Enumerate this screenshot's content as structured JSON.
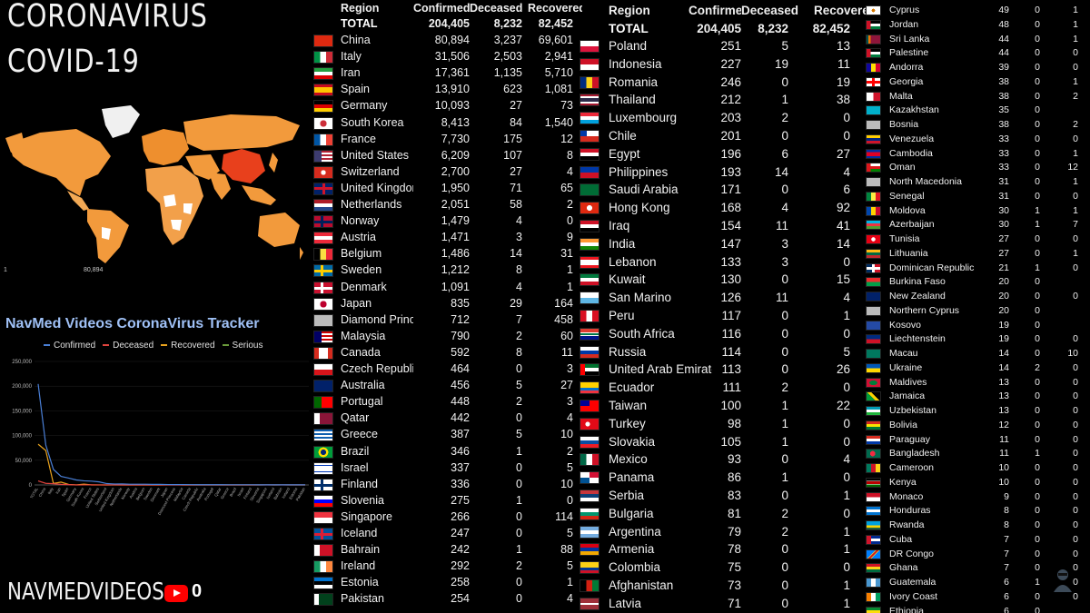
{
  "header": {
    "title_line1": "CORONAVIRUS",
    "title_line2": "COVID-19",
    "tracker_title": "NavMed Videos CoronaVirus Tracker",
    "brand": "NAVMEDVIDEOS",
    "subscriber_count": "0"
  },
  "legend": [
    {
      "label": "Confirmed",
      "color": "#4a7fd6"
    },
    {
      "label": "Deceased",
      "color": "#e0443e"
    },
    {
      "label": "Recovered",
      "color": "#e8a21d"
    },
    {
      "label": "Serious",
      "color": "#6a9a3a"
    }
  ],
  "map_scale": {
    "min_label": "1",
    "max_label": "80,894"
  },
  "chart_data": {
    "type": "line",
    "ylim": [
      0,
      250000
    ],
    "yticks": [
      "250,000",
      "200,000",
      "150,000",
      "100,000",
      "50,000",
      "0"
    ],
    "categories": [
      "TOTAL",
      "China",
      "Italy",
      "Iran",
      "Spain",
      "Germany",
      "South Korea",
      "France",
      "United States",
      "Switzerland",
      "United Kingdom",
      "Netherlands",
      "Norway",
      "Austria",
      "Belgium",
      "Sweden",
      "Denmark",
      "Japan",
      "Diamond Princess",
      "Malaysia",
      "Canada",
      "Czech Republic",
      "Australia",
      "Portugal",
      "Qatar",
      "Greece",
      "Brazil",
      "Israel",
      "Finland",
      "Slovenia",
      "Singapore",
      "Iceland",
      "Bahrain",
      "Ireland",
      "Estonia",
      "Pakistan"
    ],
    "series": [
      {
        "name": "Confirmed",
        "color": "#4a7fd6",
        "values": [
          204405,
          80894,
          31506,
          17361,
          13910,
          10093,
          8413,
          7730,
          6209,
          2700,
          1950,
          2051,
          1479,
          1471,
          1486,
          1212,
          1091,
          835,
          712,
          790,
          592,
          464,
          456,
          448,
          442,
          387,
          346,
          337,
          336,
          275,
          266,
          247,
          242,
          292,
          258,
          254
        ]
      },
      {
        "name": "Deceased",
        "color": "#e0443e",
        "values": [
          8232,
          3237,
          2503,
          1135,
          623,
          27,
          84,
          175,
          107,
          27,
          71,
          58,
          4,
          3,
          14,
          8,
          4,
          29,
          7,
          2,
          8,
          0,
          5,
          2,
          0,
          5,
          1,
          0,
          0,
          1,
          0,
          0,
          1,
          2,
          0,
          0
        ]
      },
      {
        "name": "Recovered",
        "color": "#e8a21d",
        "values": [
          82452,
          69601,
          2941,
          5710,
          1081,
          73,
          1540,
          12,
          8,
          4,
          65,
          2,
          0,
          9,
          31,
          1,
          1,
          164,
          458,
          60,
          11,
          3,
          27,
          3,
          4,
          10,
          2,
          5,
          10,
          0,
          114,
          5,
          88,
          5,
          1,
          4
        ]
      }
    ]
  },
  "tables": [
    {
      "id": "t-a",
      "headers": [
        "Region",
        "Confirmed",
        "Deceased",
        "Recovered"
      ],
      "total": {
        "label": "TOTAL",
        "confirmed": "204,405",
        "deceased": "8,232",
        "recovered": "82,452"
      },
      "rows": [
        {
          "name": "China",
          "c": "80,894",
          "d": "3,237",
          "r": "69,601",
          "flag": "cn"
        },
        {
          "name": "Italy",
          "c": "31,506",
          "d": "2,503",
          "r": "2,941",
          "flag": "it"
        },
        {
          "name": "Iran",
          "c": "17,361",
          "d": "1,135",
          "r": "5,710",
          "flag": "ir"
        },
        {
          "name": "Spain",
          "c": "13,910",
          "d": "623",
          "r": "1,081",
          "flag": "es"
        },
        {
          "name": "Germany",
          "c": "10,093",
          "d": "27",
          "r": "73",
          "flag": "de"
        },
        {
          "name": "South Korea",
          "c": "8,413",
          "d": "84",
          "r": "1,540",
          "flag": "kr"
        },
        {
          "name": "France",
          "c": "7,730",
          "d": "175",
          "r": "12",
          "flag": "fr"
        },
        {
          "name": "United States",
          "c": "6,209",
          "d": "107",
          "r": "8",
          "flag": "us"
        },
        {
          "name": "Switzerland",
          "c": "2,700",
          "d": "27",
          "r": "4",
          "flag": "ch"
        },
        {
          "name": "United Kingdom",
          "c": "1,950",
          "d": "71",
          "r": "65",
          "flag": "gb"
        },
        {
          "name": "Netherlands",
          "c": "2,051",
          "d": "58",
          "r": "2",
          "flag": "nl"
        },
        {
          "name": "Norway",
          "c": "1,479",
          "d": "4",
          "r": "0",
          "flag": "no"
        },
        {
          "name": "Austria",
          "c": "1,471",
          "d": "3",
          "r": "9",
          "flag": "at"
        },
        {
          "name": "Belgium",
          "c": "1,486",
          "d": "14",
          "r": "31",
          "flag": "be"
        },
        {
          "name": "Sweden",
          "c": "1,212",
          "d": "8",
          "r": "1",
          "flag": "se"
        },
        {
          "name": "Denmark",
          "c": "1,091",
          "d": "4",
          "r": "1",
          "flag": "dk"
        },
        {
          "name": "Japan",
          "c": "835",
          "d": "29",
          "r": "164",
          "flag": "jp"
        },
        {
          "name": "Diamond Princess",
          "c": "712",
          "d": "7",
          "r": "458",
          "flag": "unk"
        },
        {
          "name": "Malaysia",
          "c": "790",
          "d": "2",
          "r": "60",
          "flag": "my"
        },
        {
          "name": "Canada",
          "c": "592",
          "d": "8",
          "r": "11",
          "flag": "ca"
        },
        {
          "name": "Czech Republic",
          "c": "464",
          "d": "0",
          "r": "3",
          "flag": "cz"
        },
        {
          "name": "Australia",
          "c": "456",
          "d": "5",
          "r": "27",
          "flag": "au"
        },
        {
          "name": "Portugal",
          "c": "448",
          "d": "2",
          "r": "3",
          "flag": "pt"
        },
        {
          "name": "Qatar",
          "c": "442",
          "d": "0",
          "r": "4",
          "flag": "qa"
        },
        {
          "name": "Greece",
          "c": "387",
          "d": "5",
          "r": "10",
          "flag": "gr"
        },
        {
          "name": "Brazil",
          "c": "346",
          "d": "1",
          "r": "2",
          "flag": "br"
        },
        {
          "name": "Israel",
          "c": "337",
          "d": "0",
          "r": "5",
          "flag": "il"
        },
        {
          "name": "Finland",
          "c": "336",
          "d": "0",
          "r": "10",
          "flag": "fi"
        },
        {
          "name": "Slovenia",
          "c": "275",
          "d": "1",
          "r": "0",
          "flag": "si"
        },
        {
          "name": "Singapore",
          "c": "266",
          "d": "0",
          "r": "114",
          "flag": "sg"
        },
        {
          "name": "Iceland",
          "c": "247",
          "d": "0",
          "r": "5",
          "flag": "is"
        },
        {
          "name": "Bahrain",
          "c": "242",
          "d": "1",
          "r": "88",
          "flag": "bh"
        },
        {
          "name": "Ireland",
          "c": "292",
          "d": "2",
          "r": "5",
          "flag": "ie"
        },
        {
          "name": "Estonia",
          "c": "258",
          "d": "0",
          "r": "1",
          "flag": "ee"
        },
        {
          "name": "Pakistan",
          "c": "254",
          "d": "0",
          "r": "4",
          "flag": "pk"
        }
      ]
    },
    {
      "id": "t-b",
      "headers": [
        "Region",
        "Confirmed",
        "Deceased",
        "Recovered"
      ],
      "total": {
        "label": "TOTAL",
        "confirmed": "204,405",
        "deceased": "8,232",
        "recovered": "82,452"
      },
      "rows": [
        {
          "name": "Poland",
          "c": "251",
          "d": "5",
          "r": "13",
          "flag": "pl"
        },
        {
          "name": "Indonesia",
          "c": "227",
          "d": "19",
          "r": "11",
          "flag": "id"
        },
        {
          "name": "Romania",
          "c": "246",
          "d": "0",
          "r": "19",
          "flag": "ro"
        },
        {
          "name": "Thailand",
          "c": "212",
          "d": "1",
          "r": "38",
          "flag": "th"
        },
        {
          "name": "Luxembourg",
          "c": "203",
          "d": "2",
          "r": "0",
          "flag": "lu"
        },
        {
          "name": "Chile",
          "c": "201",
          "d": "0",
          "r": "0",
          "flag": "cl"
        },
        {
          "name": "Egypt",
          "c": "196",
          "d": "6",
          "r": "27",
          "flag": "eg"
        },
        {
          "name": "Philippines",
          "c": "193",
          "d": "14",
          "r": "4",
          "flag": "ph"
        },
        {
          "name": "Saudi Arabia",
          "c": "171",
          "d": "0",
          "r": "6",
          "flag": "sa"
        },
        {
          "name": "Hong Kong",
          "c": "168",
          "d": "4",
          "r": "92",
          "flag": "hk"
        },
        {
          "name": "Iraq",
          "c": "154",
          "d": "11",
          "r": "41",
          "flag": "iq"
        },
        {
          "name": "India",
          "c": "147",
          "d": "3",
          "r": "14",
          "flag": "in"
        },
        {
          "name": "Lebanon",
          "c": "133",
          "d": "3",
          "r": "0",
          "flag": "lb"
        },
        {
          "name": "Kuwait",
          "c": "130",
          "d": "0",
          "r": "15",
          "flag": "kw"
        },
        {
          "name": "San Marino",
          "c": "126",
          "d": "11",
          "r": "4",
          "flag": "sm"
        },
        {
          "name": "Peru",
          "c": "117",
          "d": "0",
          "r": "1",
          "flag": "pe"
        },
        {
          "name": "South Africa",
          "c": "116",
          "d": "0",
          "r": "0",
          "flag": "za"
        },
        {
          "name": "Russia",
          "c": "114",
          "d": "0",
          "r": "5",
          "flag": "ru"
        },
        {
          "name": "United Arab Emirates",
          "c": "113",
          "d": "0",
          "r": "26",
          "flag": "ae"
        },
        {
          "name": "Ecuador",
          "c": "111",
          "d": "2",
          "r": "0",
          "flag": "ec"
        },
        {
          "name": "Taiwan",
          "c": "100",
          "d": "1",
          "r": "22",
          "flag": "tw"
        },
        {
          "name": "Turkey",
          "c": "98",
          "d": "1",
          "r": "0",
          "flag": "tr"
        },
        {
          "name": "Slovakia",
          "c": "105",
          "d": "1",
          "r": "0",
          "flag": "sk"
        },
        {
          "name": "Mexico",
          "c": "93",
          "d": "0",
          "r": "4",
          "flag": "mx"
        },
        {
          "name": "Panama",
          "c": "86",
          "d": "1",
          "r": "0",
          "flag": "pa"
        },
        {
          "name": "Serbia",
          "c": "83",
          "d": "0",
          "r": "1",
          "flag": "rs"
        },
        {
          "name": "Bulgaria",
          "c": "81",
          "d": "2",
          "r": "0",
          "flag": "bg"
        },
        {
          "name": "Argentina",
          "c": "79",
          "d": "2",
          "r": "1",
          "flag": "ar"
        },
        {
          "name": "Armenia",
          "c": "78",
          "d": "0",
          "r": "1",
          "flag": "am"
        },
        {
          "name": "Colombia",
          "c": "75",
          "d": "0",
          "r": "0",
          "flag": "co"
        },
        {
          "name": "Afghanistan",
          "c": "73",
          "d": "0",
          "r": "1",
          "flag": "af"
        },
        {
          "name": "Latvia",
          "c": "71",
          "d": "0",
          "r": "1",
          "flag": "lv"
        }
      ]
    },
    {
      "id": "t-c",
      "rows": [
        {
          "name": "Cyprus",
          "c": "49",
          "d": "0",
          "r": "1",
          "flag": "cy"
        },
        {
          "name": "Jordan",
          "c": "48",
          "d": "0",
          "r": "1",
          "flag": "jo"
        },
        {
          "name": "Sri Lanka",
          "c": "44",
          "d": "0",
          "r": "1",
          "flag": "lk"
        },
        {
          "name": "Palestine",
          "c": "44",
          "d": "0",
          "r": "0",
          "flag": "ps"
        },
        {
          "name": "Andorra",
          "c": "39",
          "d": "0",
          "r": "0",
          "flag": "ad"
        },
        {
          "name": "Georgia",
          "c": "38",
          "d": "0",
          "r": "1",
          "flag": "ge"
        },
        {
          "name": "Malta",
          "c": "38",
          "d": "0",
          "r": "2",
          "flag": "mt"
        },
        {
          "name": "Kazakhstan",
          "c": "35",
          "d": "0",
          "r": "",
          "flag": "kz"
        },
        {
          "name": "Bosnia",
          "c": "38",
          "d": "0",
          "r": "2",
          "flag": "unk"
        },
        {
          "name": "Venezuela",
          "c": "33",
          "d": "0",
          "r": "0",
          "flag": "ve"
        },
        {
          "name": "Cambodia",
          "c": "33",
          "d": "0",
          "r": "1",
          "flag": "kh"
        },
        {
          "name": "Oman",
          "c": "33",
          "d": "0",
          "r": "12",
          "flag": "om"
        },
        {
          "name": "North Macedonia",
          "c": "31",
          "d": "0",
          "r": "1",
          "flag": "unk"
        },
        {
          "name": "Senegal",
          "c": "31",
          "d": "0",
          "r": "0",
          "flag": "sn"
        },
        {
          "name": "Moldova",
          "c": "30",
          "d": "1",
          "r": "1",
          "flag": "md"
        },
        {
          "name": "Azerbaijan",
          "c": "30",
          "d": "1",
          "r": "7",
          "flag": "az"
        },
        {
          "name": "Tunisia",
          "c": "27",
          "d": "0",
          "r": "0",
          "flag": "tn"
        },
        {
          "name": "Lithuania",
          "c": "27",
          "d": "0",
          "r": "1",
          "flag": "lt"
        },
        {
          "name": "Dominican Republic",
          "c": "21",
          "d": "1",
          "r": "0",
          "flag": "do"
        },
        {
          "name": "Burkina Faso",
          "c": "20",
          "d": "0",
          "r": "",
          "flag": "bf"
        },
        {
          "name": "New Zealand",
          "c": "20",
          "d": "0",
          "r": "0",
          "flag": "nz"
        },
        {
          "name": "Northern Cyprus",
          "c": "20",
          "d": "0",
          "r": "",
          "flag": "unk"
        },
        {
          "name": "Kosovo",
          "c": "19",
          "d": "0",
          "r": "",
          "flag": "xk"
        },
        {
          "name": "Liechtenstein",
          "c": "19",
          "d": "0",
          "r": "0",
          "flag": "li"
        },
        {
          "name": "Macau",
          "c": "14",
          "d": "0",
          "r": "10",
          "flag": "mo"
        },
        {
          "name": "Ukraine",
          "c": "14",
          "d": "2",
          "r": "0",
          "flag": "ua"
        },
        {
          "name": "Maldives",
          "c": "13",
          "d": "0",
          "r": "0",
          "flag": "mv"
        },
        {
          "name": "Jamaica",
          "c": "13",
          "d": "0",
          "r": "0",
          "flag": "jm"
        },
        {
          "name": "Uzbekistan",
          "c": "13",
          "d": "0",
          "r": "0",
          "flag": "uz"
        },
        {
          "name": "Bolivia",
          "c": "12",
          "d": "0",
          "r": "0",
          "flag": "bo"
        },
        {
          "name": "Paraguay",
          "c": "11",
          "d": "0",
          "r": "0",
          "flag": "py"
        },
        {
          "name": "Bangladesh",
          "c": "11",
          "d": "1",
          "r": "0",
          "flag": "bd"
        },
        {
          "name": "Cameroon",
          "c": "10",
          "d": "0",
          "r": "0",
          "flag": "cm"
        },
        {
          "name": "Kenya",
          "c": "10",
          "d": "0",
          "r": "0",
          "flag": "ke"
        },
        {
          "name": "Monaco",
          "c": "9",
          "d": "0",
          "r": "0",
          "flag": "mc"
        },
        {
          "name": "Honduras",
          "c": "8",
          "d": "0",
          "r": "0",
          "flag": "hn"
        },
        {
          "name": "Rwanda",
          "c": "8",
          "d": "0",
          "r": "0",
          "flag": "rw"
        },
        {
          "name": "Cuba",
          "c": "7",
          "d": "0",
          "r": "0",
          "flag": "cu"
        },
        {
          "name": "DR Congo",
          "c": "7",
          "d": "0",
          "r": "0",
          "flag": "cd"
        },
        {
          "name": "Ghana",
          "c": "7",
          "d": "0",
          "r": "0",
          "flag": "gh"
        },
        {
          "name": "Guatemala",
          "c": "6",
          "d": "1",
          "r": "0",
          "flag": "gt"
        },
        {
          "name": "Ivory Coast",
          "c": "6",
          "d": "0",
          "r": "0",
          "flag": "ci"
        },
        {
          "name": "Ethiopia",
          "c": "6",
          "d": "0",
          "r": "",
          "flag": "et"
        }
      ]
    }
  ]
}
